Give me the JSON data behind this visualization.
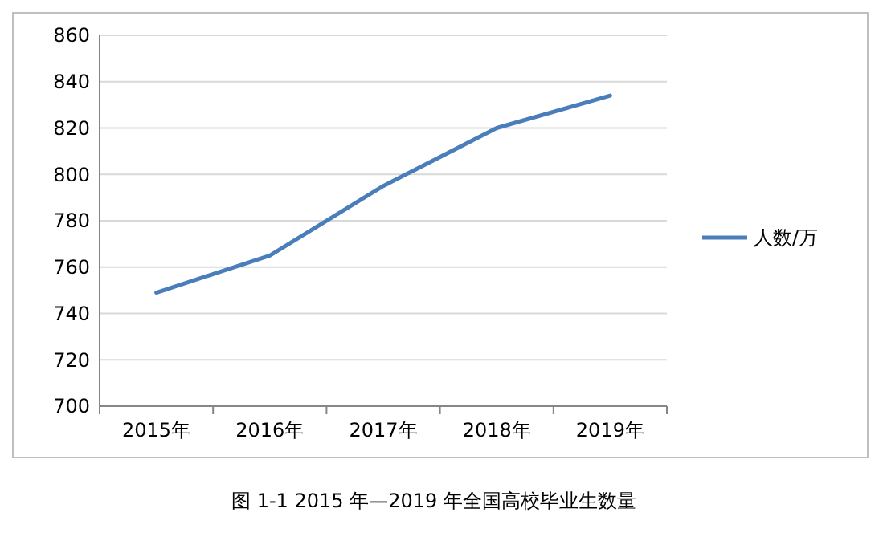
{
  "chart_data": {
    "type": "line",
    "title": "图 1-1    2015 年—2019 年全国高校毕业生数量",
    "categories": [
      "2015年",
      "2016年",
      "2017年",
      "2018年",
      "2019年"
    ],
    "series": [
      {
        "name": "人数/万",
        "color": "#4a7ebb",
        "values": [
          749,
          765,
          795,
          820,
          834
        ]
      }
    ],
    "ylim": [
      700,
      860
    ],
    "yticks": [
      700,
      720,
      740,
      760,
      780,
      800,
      820,
      840,
      860
    ],
    "grid": "y",
    "legend": "right",
    "marker": "none",
    "line_style": "solid"
  }
}
